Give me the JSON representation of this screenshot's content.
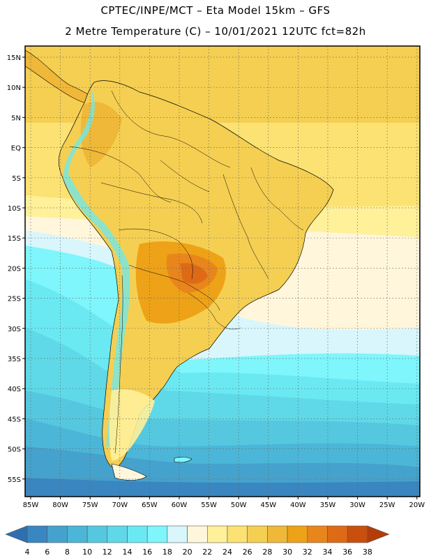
{
  "header": {
    "title_line1": "CPTEC/INPE/MCT –  Eta Model 15km – GFS",
    "title_line2": "2 Metre Temperature (C) – 10/01/2021 12UTC fct=82h"
  },
  "map": {
    "lat_labels": [
      "15N",
      "10N",
      "5N",
      "EQ",
      "5S",
      "10S",
      "15S",
      "20S",
      "25S",
      "30S",
      "35S",
      "40S",
      "45S",
      "50S",
      "55S"
    ],
    "lon_labels": [
      "85W",
      "80W",
      "75W",
      "70W",
      "65W",
      "60W",
      "55W",
      "50W",
      "45W",
      "40W",
      "35W",
      "30W",
      "25W",
      "20W"
    ]
  },
  "colorbar": {
    "values": [
      4,
      6,
      8,
      10,
      12,
      14,
      16,
      18,
      20,
      22,
      24,
      26,
      28,
      30,
      32,
      34,
      36,
      38
    ],
    "colors": [
      "#2f6fb0",
      "#3a86c0",
      "#45a2cc",
      "#4cb6d8",
      "#55c8df",
      "#5fd9e8",
      "#6ae9f3",
      "#7ef6fb",
      "#d8f6fb",
      "#fff6dc",
      "#fff09a",
      "#fbe273",
      "#f5cf52",
      "#efb838",
      "#eea217",
      "#e8861c",
      "#de6a16",
      "#c94f0e",
      "#b33d09"
    ]
  }
}
